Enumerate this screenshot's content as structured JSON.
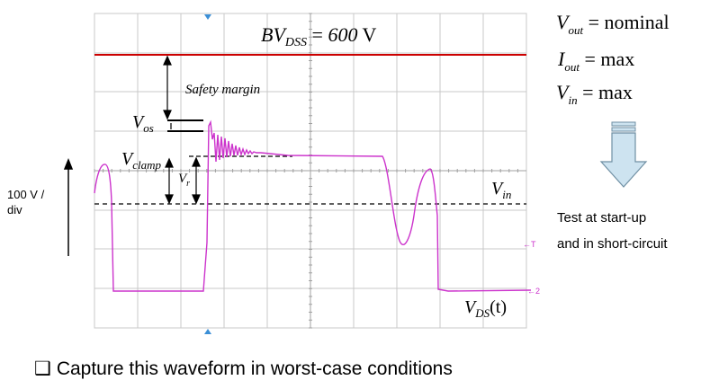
{
  "scope": {
    "bvdss_label": {
      "sym": "BV",
      "sub": "DSS",
      "eq": " = ",
      "val": "600",
      "unit": " V"
    },
    "safety_margin": "Safety margin",
    "vos_label": {
      "sym": "V",
      "sub": "os"
    },
    "vclamp_label": {
      "sym": "V",
      "sub": "clamp"
    },
    "vr_label": {
      "sym": "V",
      "sub": "r"
    },
    "vin_label": {
      "sym": "V",
      "sub": "in"
    },
    "vds_label": {
      "sym": "V",
      "sub": "DS",
      "arg": "(t)"
    },
    "marker_t": "←T",
    "marker_2": "←2"
  },
  "left_scale": {
    "line1": "100 V /",
    "line2": "div"
  },
  "conditions": [
    {
      "sym": "V",
      "sub": "out",
      "rest": " = nominal"
    },
    {
      "sym": "I",
      "sub": "out",
      "rest": " = max"
    },
    {
      "sym": "V",
      "sub": "in",
      "rest": " = max"
    }
  ],
  "test_text": {
    "line1": "Test at start-up",
    "line2": "and in short-circuit"
  },
  "bullet": {
    "glyph": "❑",
    "text": "Capture this waveform in worst-case conditions"
  },
  "colors": {
    "grid": "#c8c8c8",
    "waveform": "#cc33cc",
    "bvdss_line": "#cc0000",
    "arrow_fill": "#cde3f0",
    "arrow_stroke": "#6f8fa3",
    "marker_blue": "#3b8fd6"
  }
}
